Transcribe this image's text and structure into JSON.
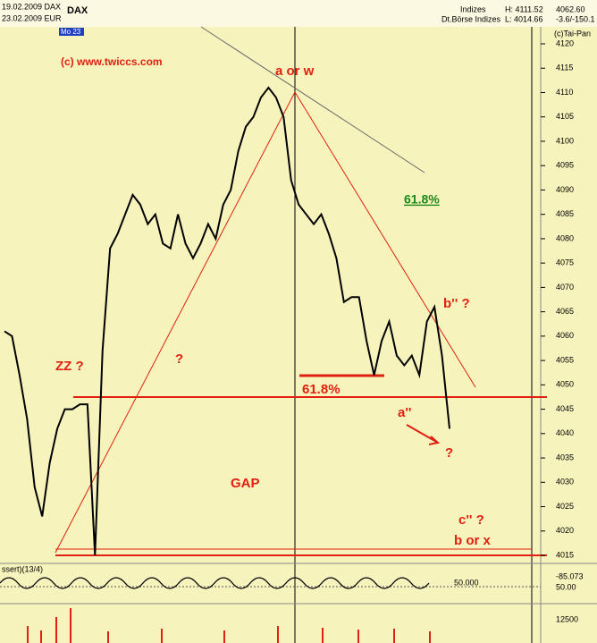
{
  "chart_data": {
    "type": "line",
    "title": "DAX",
    "header": {
      "date1": "19.02.2009 DAX",
      "date2": "23.02.2009 EUR",
      "period": "Mo 23",
      "market": "Indizes",
      "exchange": "Dt.Börse Indizes",
      "high": "H: 4111.52",
      "low": "L: 4014.66",
      "last": "4062.60",
      "change": "-3.6/-150.1",
      "source": "(c)Tai-Pan"
    },
    "annotations": [
      "(c)  www.twiccs.com",
      "a or w",
      "61.8%",
      "b'' ?",
      "ZZ ?",
      "?",
      "61.8%",
      "a''",
      "?",
      "GAP",
      "c'' ?",
      "b or x"
    ],
    "indicator": {
      "name": "ssert)(13/4)",
      "level": "50.000",
      "value": "-85.073",
      "axis": "50.00",
      "volume_axis": "12500"
    },
    "categories": [
      null,
      null,
      null,
      null,
      null,
      null,
      null,
      null,
      null,
      null,
      null,
      null,
      null,
      null,
      null,
      null,
      null,
      null,
      null,
      null,
      null,
      null,
      null,
      null,
      null,
      null,
      null,
      null,
      null,
      null,
      null,
      null,
      null,
      null,
      null,
      null,
      null,
      null,
      null,
      null,
      null,
      null,
      null,
      null,
      null,
      null,
      null,
      null,
      null,
      null,
      null,
      null,
      null,
      null,
      null,
      null,
      null,
      null,
      null,
      null
    ],
    "series": [
      {
        "name": "DAX",
        "color": "#000000",
        "values": [
          4061,
          4060,
          4052,
          4043,
          4029,
          4023,
          4034,
          4041,
          4045,
          4045,
          4046,
          4046,
          4015,
          4057,
          4078,
          4081,
          4085,
          4089,
          4087,
          4083,
          4085,
          4079,
          4078,
          4085,
          4079,
          4076,
          4079,
          4083,
          4080,
          4087,
          4090,
          4098,
          4103,
          4105,
          4109,
          4111,
          4109,
          4105,
          4092,
          4087,
          4085,
          4083,
          4085,
          4081,
          4076,
          4067,
          4068,
          4068,
          4059,
          4052,
          4059,
          4063,
          4056,
          4054,
          4056,
          4052,
          4063,
          4066,
          4056,
          4041
        ]
      }
    ],
    "ylim": [
      4013.35,
      4123.49
    ],
    "yticks": [
      4015,
      4020,
      4025,
      4030,
      4035,
      4040,
      4045,
      4050,
      4055,
      4060,
      4065,
      4070,
      4075,
      4080,
      4085,
      4090,
      4095,
      4100,
      4105,
      4110,
      4115,
      4120
    ],
    "grid": false
  }
}
